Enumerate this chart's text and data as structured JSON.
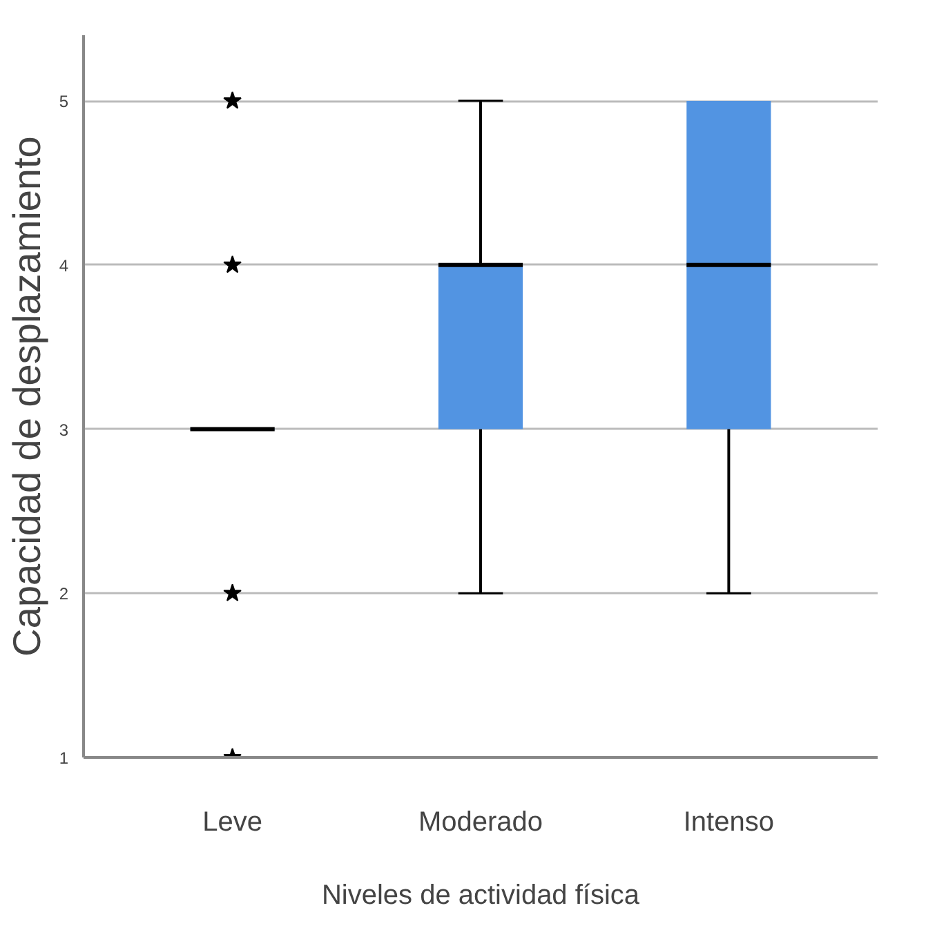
{
  "chart_data": {
    "type": "box",
    "xlabel": "Niveles de actividad física",
    "ylabel": "Capacidad de desplazamiento",
    "categories": [
      "Leve",
      "Moderado",
      "Intenso"
    ],
    "color": "#5294e2",
    "boxes": [
      {
        "low": 3,
        "q1": 3,
        "median": 3,
        "q3": 3,
        "high": 3,
        "outliers": [
          5,
          4,
          2,
          1
        ]
      },
      {
        "low": 2,
        "q1": 3,
        "median": 4,
        "q3": 4,
        "high": 5
      },
      {
        "low": 2,
        "q1": 3,
        "median": 4,
        "q3": 5,
        "high": 5
      }
    ],
    "marker": "star",
    "ylim": [
      1,
      5.4
    ],
    "yticks": [
      1,
      2,
      3,
      4,
      5
    ],
    "grid": "y"
  }
}
